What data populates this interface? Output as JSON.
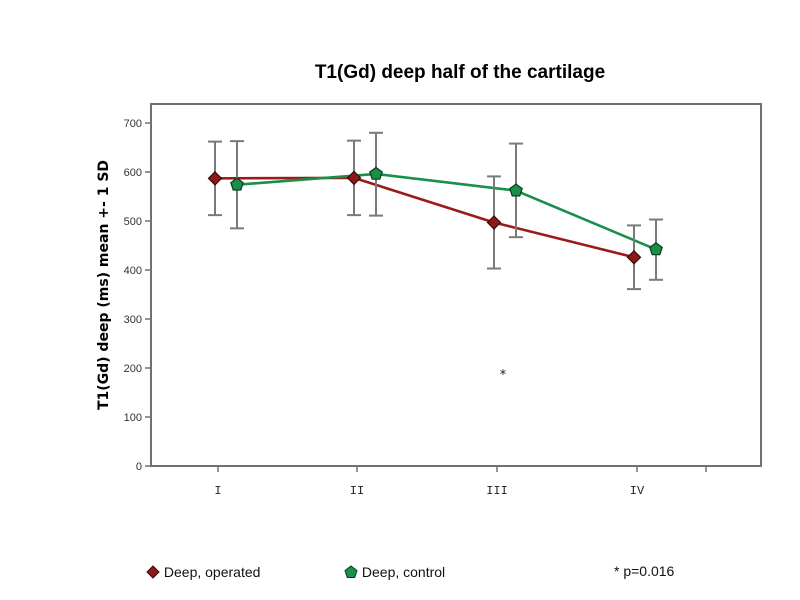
{
  "chart_data": {
    "type": "line",
    "title": "T1(Gd) deep half of the cartilage",
    "ylabel": "T1(Gd) deep (ms) mean +- 1 SD",
    "xlabel": "",
    "categories": [
      "I",
      "II",
      "III",
      "IV"
    ],
    "ylim": [
      0,
      700
    ],
    "yticks": [
      0,
      100,
      200,
      300,
      400,
      500,
      600,
      700
    ],
    "grid": false,
    "legend_position": "bottom",
    "series": [
      {
        "name": "Deep, operated",
        "color": "#9b1b1b",
        "marker": "diamond",
        "values": [
          587,
          588,
          497,
          426
        ],
        "err_low": [
          512,
          512,
          403,
          361
        ],
        "err_high": [
          662,
          664,
          591,
          491
        ]
      },
      {
        "name": "Deep, control",
        "color": "#1a8f4a",
        "marker": "pentagon",
        "values": [
          574,
          596,
          562,
          442
        ],
        "err_low": [
          485,
          511,
          467,
          380
        ],
        "err_high": [
          663,
          680,
          658,
          503
        ]
      }
    ],
    "annotations": [
      {
        "text": "*",
        "category": "III",
        "y": 280
      }
    ]
  },
  "note": "* p=0.016"
}
